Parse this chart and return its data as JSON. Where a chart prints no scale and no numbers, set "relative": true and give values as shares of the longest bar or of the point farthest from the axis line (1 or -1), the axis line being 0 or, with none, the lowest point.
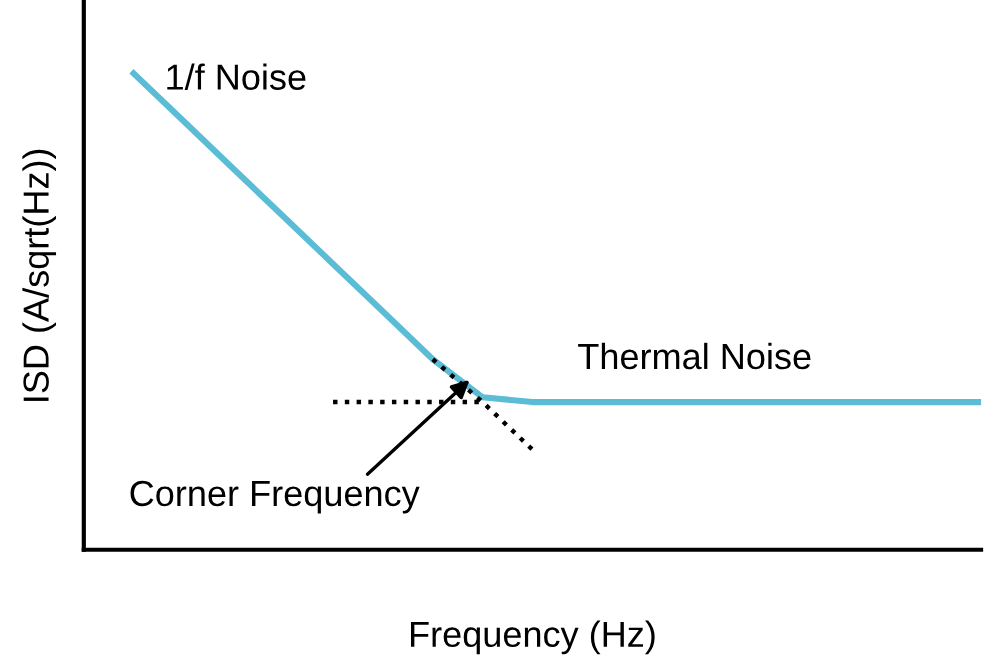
{
  "chart_data": {
    "type": "line",
    "relative": true,
    "xlabel": "Frequency (Hz)",
    "ylabel": "ISD (A/sqrt(Hz))",
    "categories": [
      null,
      null,
      null,
      null,
      null,
      null,
      null,
      null,
      null,
      null,
      null,
      null,
      null,
      null,
      null,
      null,
      null,
      null
    ],
    "series": [
      {
        "color": "#5bbcd6",
        "line_style": "solid",
        "values": [
          1.0,
          0.9,
          0.8,
          0.7,
          0.6,
          0.5,
          0.4,
          0.32,
          0.31,
          0.31,
          0.31,
          0.31,
          0.31,
          0.31,
          0.31,
          0.31,
          0.31,
          0.31
        ]
      },
      {
        "color": "#000000",
        "line_style": "dotted",
        "values": [
          null,
          null,
          null,
          null,
          0.31,
          0.31,
          0.31,
          0.31,
          null,
          null,
          null,
          null,
          null,
          null,
          null,
          null,
          null,
          null
        ]
      },
      {
        "color": "#000000",
        "line_style": "dotted",
        "values": [
          null,
          null,
          null,
          null,
          null,
          null,
          0.4,
          0.31,
          0.21,
          null,
          null,
          null,
          null,
          null,
          null,
          null,
          null,
          null
        ]
      }
    ],
    "annotations": [
      "1/f Noise",
      "Thermal Noise",
      "Corner Frequency"
    ],
    "grid": false,
    "legend": false,
    "marker": "none"
  }
}
